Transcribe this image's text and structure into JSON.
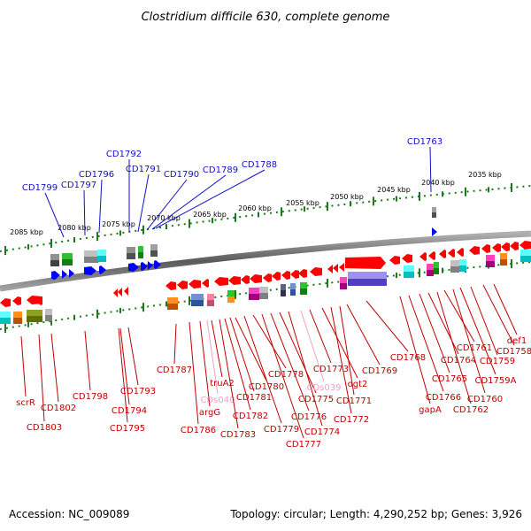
{
  "title": "Clostridium difficile 630, complete genome",
  "footer": {
    "accession": "Accession: NC_009089",
    "topology": "Topology: circular; Length: 4,290,252 bp; Genes: 3,926"
  },
  "colors": {
    "forward_label": "#1010c8",
    "reverse_label": "#c00000",
    "rna_label": "#f0a0c8",
    "backbone": "#808080",
    "ticks": "#1a7a1a",
    "gene": "#ff0000",
    "blue_gene": "#0000ff"
  },
  "scale_ticks": [
    "2085 kbp",
    "2080 kbp",
    "2075 kbp",
    "2070 kbp",
    "2065 kbp",
    "2060 kbp",
    "2055 kbp",
    "2050 kbp",
    "2045 kbp",
    "2040 kbp",
    "2035 kbp"
  ],
  "forward_labels": [
    "CD1799",
    "CD1797",
    "CD1796",
    "CD1792",
    "CD1791",
    "CD1790",
    "CD1789",
    "CD1788",
    "CD1763"
  ],
  "reverse_labels": [
    {
      "text": "scrR",
      "kind": "gene"
    },
    {
      "text": "CD1803",
      "kind": "gene"
    },
    {
      "text": "CD1802",
      "kind": "gene"
    },
    {
      "text": "CD1798",
      "kind": "gene"
    },
    {
      "text": "CD1794",
      "kind": "gene"
    },
    {
      "text": "CD1795",
      "kind": "gene"
    },
    {
      "text": "CD1793",
      "kind": "gene"
    },
    {
      "text": "CD1787",
      "kind": "gene"
    },
    {
      "text": "CD1786",
      "kind": "gene"
    },
    {
      "text": "argG",
      "kind": "gene"
    },
    {
      "text": "CDs040",
      "kind": "rna"
    },
    {
      "text": "truA2",
      "kind": "gene"
    },
    {
      "text": "CD1783",
      "kind": "gene"
    },
    {
      "text": "CD1782",
      "kind": "gene"
    },
    {
      "text": "CD1781",
      "kind": "gene"
    },
    {
      "text": "CD1780",
      "kind": "gene"
    },
    {
      "text": "CD1779",
      "kind": "gene"
    },
    {
      "text": "CD1778",
      "kind": "gene"
    },
    {
      "text": "CD1777",
      "kind": "gene"
    },
    {
      "text": "CD1776",
      "kind": "gene"
    },
    {
      "text": "CD1775",
      "kind": "gene"
    },
    {
      "text": "CD1774",
      "kind": "gene"
    },
    {
      "text": "CDs039",
      "kind": "rna"
    },
    {
      "text": "CD1773",
      "kind": "gene"
    },
    {
      "text": "ogt2",
      "kind": "gene"
    },
    {
      "text": "CD1772",
      "kind": "gene"
    },
    {
      "text": "CD1771",
      "kind": "gene"
    },
    {
      "text": "CD1769",
      "kind": "gene"
    },
    {
      "text": "CD1768",
      "kind": "gene"
    },
    {
      "text": "gapA",
      "kind": "gene"
    },
    {
      "text": "CD1766",
      "kind": "gene"
    },
    {
      "text": "CD1765",
      "kind": "gene"
    },
    {
      "text": "CD1764",
      "kind": "gene"
    },
    {
      "text": "CD1762",
      "kind": "gene"
    },
    {
      "text": "CD1761",
      "kind": "gene"
    },
    {
      "text": "CD1760",
      "kind": "gene"
    },
    {
      "text": "CD1759A",
      "kind": "gene"
    },
    {
      "text": "CD1759",
      "kind": "gene"
    },
    {
      "text": "CD1758",
      "kind": "gene"
    },
    {
      "text": "def1",
      "kind": "gene"
    }
  ]
}
